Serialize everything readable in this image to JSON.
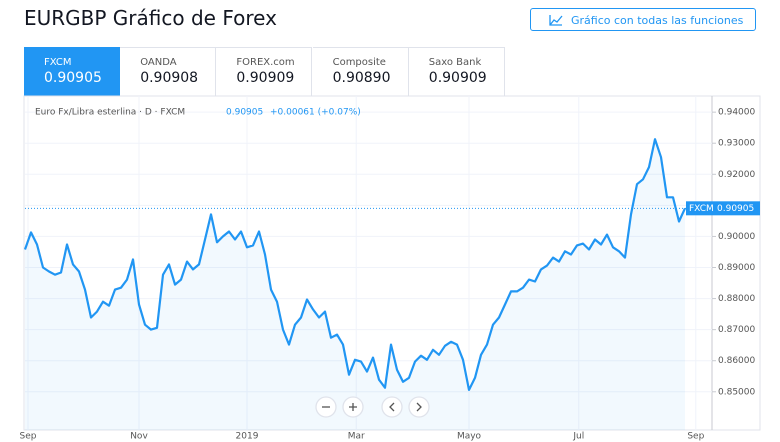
{
  "header": {
    "title": "EURGBP Gráfico de Forex",
    "button": "Gráfico con todas las funciones"
  },
  "tabs": [
    {
      "name": "FXCM",
      "value": "0.90905"
    },
    {
      "name": "OANDA",
      "value": "0.90908"
    },
    {
      "name": "FOREX.com",
      "value": "0.90909"
    },
    {
      "name": "Composite",
      "value": "0.90890"
    },
    {
      "name": "Saxo Bank",
      "value": "0.90909"
    }
  ],
  "chart_data": {
    "type": "line",
    "legend": {
      "symbol": "Euro Fx/Libra esterlina · D · FXCM",
      "price": "0.90905",
      "change": "+0.00061 (+0.07%)"
    },
    "price_tag": {
      "source": "FXCM",
      "price": {
        "value": 0.90905,
        "label": "0.90905"
      }
    },
    "color": "#2196f3",
    "values": [
      0.8958,
      0.9013,
      0.8974,
      0.89,
      0.8887,
      0.8877,
      0.8884,
      0.8974,
      0.891,
      0.8887,
      0.8829,
      0.8739,
      0.8758,
      0.879,
      0.8777,
      0.8829,
      0.8835,
      0.8861,
      0.8926,
      0.8781,
      0.8716,
      0.87,
      0.8706,
      0.8877,
      0.891,
      0.8845,
      0.8861,
      0.8919,
      0.8894,
      0.891,
      0.899,
      0.9071,
      0.8981,
      0.9,
      0.9016,
      0.899,
      0.9016,
      0.8965,
      0.8971,
      0.9016,
      0.8942,
      0.8829,
      0.879,
      0.87,
      0.8652,
      0.8716,
      0.8739,
      0.8797,
      0.8765,
      0.8739,
      0.8758,
      0.8674,
      0.8684,
      0.8652,
      0.8555,
      0.8603,
      0.8597,
      0.8565,
      0.861,
      0.8539,
      0.8513,
      0.8652,
      0.8571,
      0.8532,
      0.8545,
      0.8597,
      0.8616,
      0.8603,
      0.8635,
      0.8619,
      0.8648,
      0.8661,
      0.8652,
      0.8603,
      0.8506,
      0.8545,
      0.8619,
      0.8652,
      0.8716,
      0.8739,
      0.8781,
      0.8823,
      0.8823,
      0.8835,
      0.8861,
      0.8855,
      0.8894,
      0.8906,
      0.8932,
      0.8919,
      0.8952,
      0.8942,
      0.8971,
      0.8977,
      0.8958,
      0.899,
      0.8974,
      0.9006,
      0.8965,
      0.8952,
      0.8932,
      0.9071,
      0.9168,
      0.9184,
      0.9223,
      0.9313,
      0.9255,
      0.9126,
      0.9126,
      0.9048,
      0.90905
    ],
    "ylim": [
      0.8377,
      0.9452
    ],
    "yticks": [
      {
        "value": 0.85,
        "label": "0.85000"
      },
      {
        "value": 0.86,
        "label": "0.86000"
      },
      {
        "value": 0.87,
        "label": "0.87000"
      },
      {
        "value": 0.88,
        "label": "0.88000"
      },
      {
        "value": 0.89,
        "label": "0.89000"
      },
      {
        "value": 0.9,
        "label": "0.90000"
      },
      {
        "value": 0.91,
        "label": "0.91000"
      },
      {
        "value": 0.92,
        "label": "0.92000"
      },
      {
        "value": 0.93,
        "label": "0.93000"
      },
      {
        "value": 0.94,
        "label": "0.94000"
      }
    ],
    "xlim": [
      0,
      114.5
    ],
    "xticks": [
      {
        "value": 0.5,
        "label": "Sep"
      },
      {
        "value": 19,
        "label": "Nov"
      },
      {
        "value": 37,
        "label": "2019"
      },
      {
        "value": 55.2,
        "label": "Mar"
      },
      {
        "value": 74,
        "label": "Mayo"
      },
      {
        "value": 92.3,
        "label": "Jul"
      },
      {
        "value": 111.8,
        "label": "Sep"
      }
    ],
    "grid": true
  }
}
